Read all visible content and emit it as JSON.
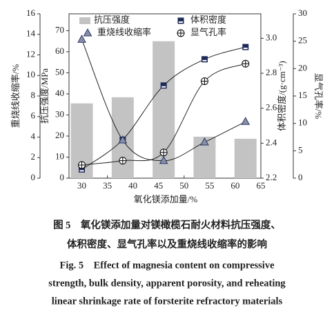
{
  "chart_data": {
    "type": "bar-line",
    "xlabel": "氧化镁添加量/%",
    "xlim": [
      27.5,
      65
    ],
    "xticks": [
      30,
      35,
      40,
      45,
      50,
      55,
      60,
      65
    ],
    "x": [
      30,
      38,
      46,
      54,
      62
    ],
    "axes": [
      {
        "label": "重烧线收缩率/%",
        "ylim": [
          0,
          16
        ],
        "yticks": [
          0,
          2,
          4,
          6,
          8,
          10,
          12,
          14,
          16
        ]
      },
      {
        "label": "抗压强度/MPa",
        "ylim": [
          0,
          78
        ],
        "yticks": [
          0,
          10,
          20,
          30,
          40,
          50,
          60,
          70
        ]
      },
      {
        "label": "体积密度/(g·cm⁻³)",
        "ylim": [
          2.2,
          3.14
        ],
        "yticks": [
          2.2,
          2.4,
          2.6,
          2.8,
          {
            "value": 3.0,
            "label": "3.0"
          }
        ]
      },
      {
        "label": "显气孔率/%",
        "ylim": [
          0,
          30
        ],
        "yticks": [
          0,
          5,
          10,
          15,
          20,
          25,
          30
        ]
      }
    ],
    "series": [
      {
        "name": "抗压强度",
        "kind": "bar",
        "axis": 1,
        "color": "#c3c3c3",
        "values": [
          35.5,
          38.4,
          65,
          19.7,
          18.7
        ]
      },
      {
        "name": "体积密度",
        "kind": "square",
        "axis": 2,
        "color": "#1f2a5a",
        "values": [
          2.25,
          2.42,
          2.73,
          2.88,
          2.95
        ]
      },
      {
        "name": "重烧线收缩率",
        "kind": "triangle",
        "axis": 0,
        "color": "#2a3566",
        "values": [
          13.5,
          3.7,
          1.7,
          3.5,
          5.5
        ]
      },
      {
        "name": "显气孔率",
        "kind": "circle",
        "axis": 3,
        "color": "#000000",
        "values": [
          2.4,
          3.2,
          4.7,
          17.7,
          20.9
        ]
      }
    ]
  },
  "caption": [
    "图 5　氧化镁添加量对镁橄榄石耐火材料抗压强度、",
    "体积密度、显气孔率以及重烧线收缩率的影响",
    "Fig. 5　Effect of magnesia content on compressive",
    "strength, bulk density, apparent porosity, and reheating",
    "linear shrinkage rate of forsterite refractory materials"
  ]
}
